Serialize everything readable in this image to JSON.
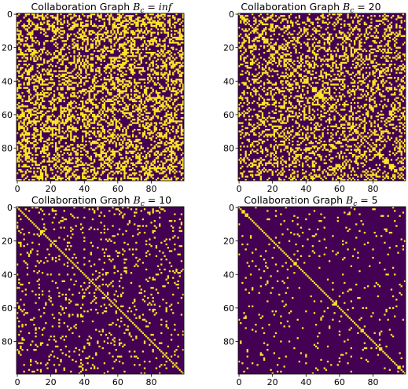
{
  "chart_data": [
    {
      "type": "heatmap",
      "title_prefix": "Collaboration Graph ",
      "title_symbol": "B",
      "title_subscript": "c",
      "title_eq": " = ",
      "title_value": "inf",
      "value_italic": true,
      "size": 100,
      "density": 0.4,
      "x_ticks": [
        "0",
        "20",
        "40",
        "60",
        "80"
      ],
      "y_ticks": [
        "0",
        "20",
        "40",
        "60",
        "80"
      ],
      "x_tick_values": [
        0,
        20,
        40,
        60,
        80
      ],
      "y_tick_values": [
        0,
        20,
        40,
        60,
        80
      ],
      "diagonal": false
    },
    {
      "type": "heatmap",
      "title_prefix": "Collaboration Graph ",
      "title_symbol": "B",
      "title_subscript": "c",
      "title_eq": " = ",
      "title_value": "20",
      "value_italic": false,
      "size": 100,
      "density": 0.3,
      "x_ticks": [
        "0",
        "20",
        "40",
        "60",
        "80"
      ],
      "y_ticks": [
        "0",
        "20",
        "40",
        "60",
        "80"
      ],
      "x_tick_values": [
        0,
        20,
        40,
        60,
        80
      ],
      "y_tick_values": [
        0,
        20,
        40,
        60,
        80
      ],
      "diagonal": true
    },
    {
      "type": "heatmap",
      "title_prefix": "Collaboration Graph ",
      "title_symbol": "B",
      "title_subscript": "c",
      "title_eq": " = ",
      "title_value": "10",
      "value_italic": false,
      "size": 100,
      "density": 0.09,
      "x_ticks": [
        "0",
        "20",
        "40",
        "60",
        "80"
      ],
      "y_ticks": [
        "0",
        "20",
        "40",
        "60",
        "80"
      ],
      "x_tick_values": [
        0,
        20,
        40,
        60,
        80
      ],
      "y_tick_values": [
        0,
        20,
        40,
        60,
        80
      ],
      "diagonal": true
    },
    {
      "type": "heatmap",
      "title_prefix": "Collaboration Graph ",
      "title_symbol": "B",
      "title_subscript": "c",
      "title_eq": " = ",
      "title_value": "5",
      "value_italic": false,
      "size": 100,
      "density": 0.04,
      "x_ticks": [
        "0",
        "20",
        "40",
        "60",
        "80"
      ],
      "y_ticks": [
        "0",
        "20",
        "40",
        "60",
        "80"
      ],
      "x_tick_values": [
        0,
        20,
        40,
        60,
        80
      ],
      "y_tick_values": [
        0,
        20,
        40,
        60,
        80
      ],
      "diagonal": true
    }
  ],
  "colors": {
    "empty": "#440154",
    "filled": "#fde725",
    "axis": "#000000"
  }
}
